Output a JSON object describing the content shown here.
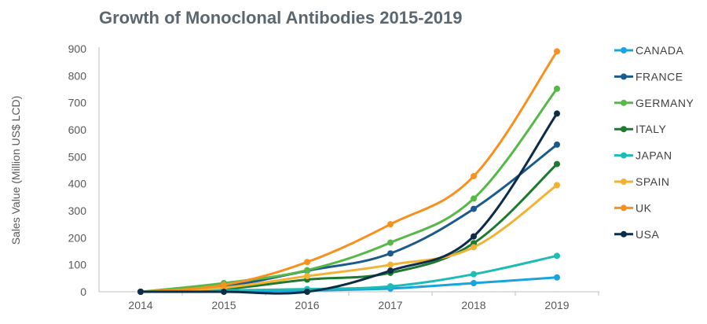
{
  "chart_data": {
    "type": "line",
    "title": "Growth of Monoclonal Antibodies 2015-2019",
    "xlabel": "",
    "ylabel": "Sales Value (Million US$ LCD)",
    "x": [
      "2014",
      "2015",
      "2016",
      "2017",
      "2018",
      "2019"
    ],
    "ylim": [
      0,
      900
    ],
    "yticks": [
      0,
      100,
      200,
      300,
      400,
      500,
      600,
      700,
      800,
      900
    ],
    "grid": false,
    "legend": "right",
    "series": [
      {
        "name": "CANADA",
        "color": "#1aa3dc",
        "values": [
          0,
          2,
          5,
          12,
          32,
          53
        ]
      },
      {
        "name": "FRANCE",
        "color": "#1b5b8c",
        "values": [
          0,
          20,
          78,
          142,
          307,
          545
        ]
      },
      {
        "name": "GERMANY",
        "color": "#56b947",
        "values": [
          0,
          32,
          80,
          182,
          345,
          752
        ]
      },
      {
        "name": "ITALY",
        "color": "#1d7a2f",
        "values": [
          0,
          10,
          45,
          70,
          180,
          473
        ]
      },
      {
        "name": "JAPAN",
        "color": "#1dbcb4",
        "values": [
          0,
          5,
          10,
          20,
          65,
          133
        ]
      },
      {
        "name": "SPAIN",
        "color": "#f2b234",
        "values": [
          0,
          15,
          58,
          100,
          165,
          395
        ]
      },
      {
        "name": "UK",
        "color": "#f7901e",
        "values": [
          0,
          25,
          110,
          250,
          428,
          890
        ]
      },
      {
        "name": "USA",
        "color": "#0d2c47",
        "values": [
          0,
          0,
          0,
          78,
          205,
          660
        ]
      }
    ]
  }
}
